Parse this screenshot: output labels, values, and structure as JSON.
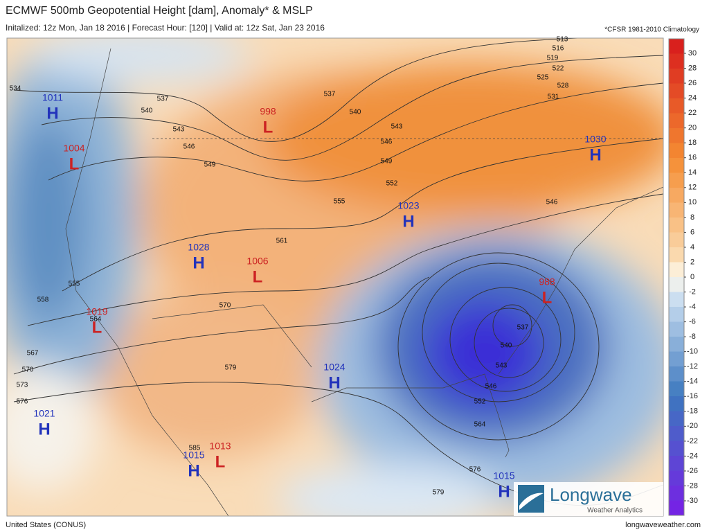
{
  "header": {
    "title": "ECMWF 500mb Geopotential Height [dam], Anomaly* & MSLP",
    "subtitle": "Initalized: 12z Mon, Jan 18 2016  |  Forecast Hour: [120]  |  Valid at: 12z Sat, Jan 23 2016",
    "note": "*CFSR 1981-2010 Climatology"
  },
  "colorbar": {
    "ticks": [
      30,
      28,
      26,
      24,
      22,
      20,
      18,
      16,
      14,
      12,
      10,
      8,
      6,
      4,
      2,
      0,
      -2,
      -4,
      -6,
      -8,
      -10,
      -12,
      -14,
      -16,
      -18,
      -20,
      -22,
      -24,
      -26,
      -28,
      -30
    ]
  },
  "contour_labels": [
    534,
    537,
    540,
    543,
    546,
    549,
    555,
    558,
    564,
    567,
    570,
    573,
    576,
    561,
    555,
    552,
    549,
    546,
    543,
    540,
    537,
    570,
    579,
    585,
    513,
    516,
    519,
    522,
    525,
    528,
    531,
    546,
    537,
    540,
    543,
    546,
    552,
    564,
    576,
    579
  ],
  "pressure_centers": [
    {
      "letter": "H",
      "value": "1011"
    },
    {
      "letter": "L",
      "value": "1004"
    },
    {
      "letter": "L",
      "value": "998"
    },
    {
      "letter": "H",
      "value": "1030"
    },
    {
      "letter": "H",
      "value": "1023"
    },
    {
      "letter": "H",
      "value": "1028"
    },
    {
      "letter": "L",
      "value": "1006"
    },
    {
      "letter": "L",
      "value": "988"
    },
    {
      "letter": "L",
      "value": "1019"
    },
    {
      "letter": "H",
      "value": "1024"
    },
    {
      "letter": "H",
      "value": "1021"
    },
    {
      "letter": "H",
      "value": "1015"
    },
    {
      "letter": "L",
      "value": "1013"
    },
    {
      "letter": "H",
      "value": "1015"
    }
  ],
  "footer": {
    "left": "United States (CONUS)",
    "right": "longwaveweather.com"
  },
  "logo": {
    "name": "Longwave",
    "tagline": "Weather Analytics"
  }
}
